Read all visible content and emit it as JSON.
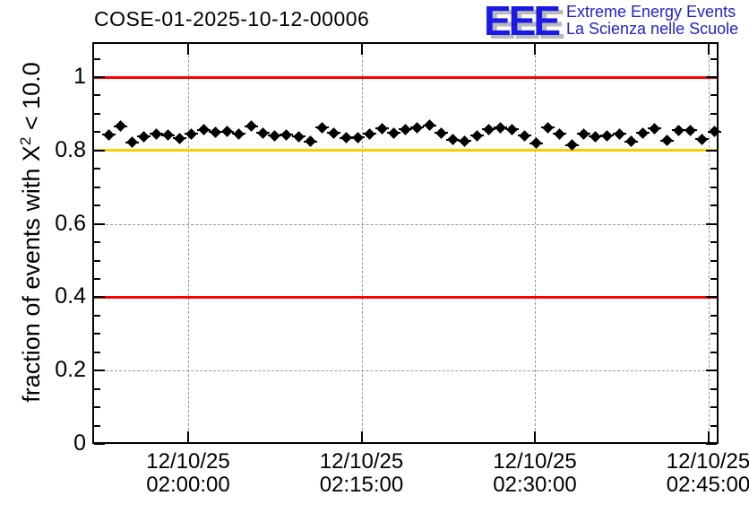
{
  "title": "COSE-01-2025-10-12-00006",
  "logo": {
    "letters": "EEE",
    "line1": "Extreme Energy Events",
    "line2": "La Scienza nelle Scuole",
    "letters_color": "#1a1ae6",
    "text_color": "#2222cc"
  },
  "chart_data": {
    "type": "scatter",
    "title": "COSE-01-2025-10-12-00006",
    "xlabel": "",
    "ylabel": "fraction of events with X^2 < 10.0",
    "ylabel_parts": {
      "prefix": "fraction of events with X",
      "sup": "2",
      "suffix": " < 10.0"
    },
    "ylim": [
      0,
      1.095
    ],
    "grid": true,
    "legend": "none",
    "y_ticks": [
      {
        "value": 0,
        "label": "0"
      },
      {
        "value": 0.2,
        "label": "0.2"
      },
      {
        "value": 0.4,
        "label": "0.4"
      },
      {
        "value": 0.6,
        "label": "0.6"
      },
      {
        "value": 0.8,
        "label": "0.8"
      },
      {
        "value": 1.0,
        "label": "1"
      }
    ],
    "y_minor_tick_step": 0.05,
    "x_ticks": [
      {
        "date": "12/10/25",
        "time": "02:00:00"
      },
      {
        "date": "12/10/25",
        "time": "02:15:00"
      },
      {
        "date": "12/10/25",
        "time": "02:30:00"
      },
      {
        "date": "12/10/25",
        "time": "02:45:00"
      }
    ],
    "reference_lines": [
      {
        "y": 1.0,
        "color": "#ff0000",
        "name": "upper-limit"
      },
      {
        "y": 0.8,
        "color": "#ffcc00",
        "name": "warning-level"
      },
      {
        "y": 0.4,
        "color": "#ff0000",
        "name": "lower-limit"
      }
    ],
    "series": [
      {
        "name": "fraction of events with chi2 < 10 per time bin",
        "marker": "filled-diamond",
        "color": "#000000",
        "x_span_frac": [
          0.026,
          0.993
        ],
        "values": [
          0.843,
          0.866,
          0.822,
          0.838,
          0.845,
          0.842,
          0.833,
          0.845,
          0.856,
          0.85,
          0.852,
          0.845,
          0.866,
          0.848,
          0.841,
          0.843,
          0.838,
          0.824,
          0.863,
          0.848,
          0.834,
          0.836,
          0.845,
          0.86,
          0.848,
          0.858,
          0.862,
          0.868,
          0.848,
          0.829,
          0.826,
          0.84,
          0.858,
          0.862,
          0.858,
          0.84,
          0.82,
          0.862,
          0.845,
          0.815,
          0.845,
          0.838,
          0.84,
          0.845,
          0.824,
          0.848,
          0.86,
          0.827,
          0.855,
          0.855,
          0.831,
          0.852
        ]
      }
    ]
  }
}
